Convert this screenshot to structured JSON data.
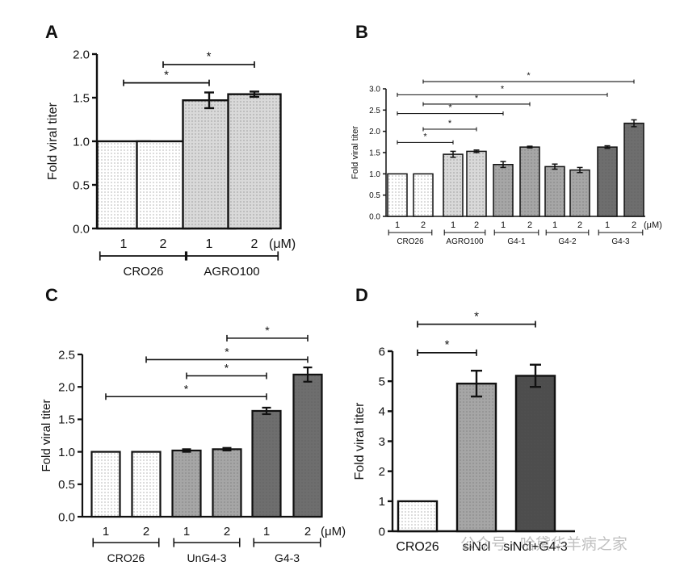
{
  "colors": {
    "white": "#ffffff",
    "light": "#d9d9d9",
    "medium": "#a6a6a6",
    "dark": "#6e6e6e",
    "darker": "#4d4d4d",
    "ink": "#111111",
    "watermark": "#8c8c8c"
  },
  "watermark": {
    "text": "公众号 · 哈黛华羊病之家"
  },
  "chart_data": [
    {
      "panel": "A",
      "type": "bar",
      "ylabel": "Fold viral titer",
      "ylim": [
        0,
        2.0
      ],
      "yticks": [
        0.0,
        0.5,
        1.0,
        1.5,
        2.0
      ],
      "ytick_labels": [
        "0.0",
        "0.5",
        "1.0",
        "1.5",
        "2.0"
      ],
      "unit": "(μM)",
      "categories": [
        "1",
        "2",
        "1",
        "2"
      ],
      "values": [
        1.0,
        1.0,
        1.47,
        1.54
      ],
      "errors": [
        0,
        0,
        0.09,
        0.03
      ],
      "fills": [
        "white",
        "white",
        "light",
        "light"
      ],
      "groups": [
        {
          "label": "CRO26",
          "start": 0,
          "end": 1
        },
        {
          "label": "AGRO100",
          "start": 2,
          "end": 3
        }
      ],
      "significance": [
        {
          "from": 0,
          "to": 2,
          "y": 1.67,
          "label": "*"
        },
        {
          "from": 1,
          "to": 3,
          "y": 1.88,
          "label": "*"
        }
      ]
    },
    {
      "panel": "B",
      "type": "bar",
      "ylabel": "Fold viral titer",
      "ylim": [
        0,
        3.0
      ],
      "yticks": [
        0.0,
        0.5,
        1.0,
        1.5,
        2.0,
        2.5,
        3.0
      ],
      "ytick_labels": [
        "0.0",
        "0.5",
        "1.0",
        "1.5",
        "2.0",
        "2.5",
        "3.0"
      ],
      "unit": "(μM)",
      "categories": [
        "1",
        "2",
        "1",
        "2",
        "1",
        "2",
        "1",
        "2",
        "1",
        "2"
      ],
      "values": [
        1.0,
        1.0,
        1.46,
        1.53,
        1.22,
        1.63,
        1.17,
        1.09,
        1.63,
        2.19
      ],
      "errors": [
        0,
        0,
        0.07,
        0.03,
        0.07,
        0.02,
        0.06,
        0.06,
        0.03,
        0.08
      ],
      "fills": [
        "white",
        "white",
        "light",
        "light",
        "medium",
        "medium",
        "medium",
        "medium",
        "dark",
        "dark"
      ],
      "groups": [
        {
          "label": "CRO26",
          "start": 0,
          "end": 1
        },
        {
          "label": "AGRO100",
          "start": 2,
          "end": 3
        },
        {
          "label": "G4-1",
          "start": 4,
          "end": 5
        },
        {
          "label": "G4-2",
          "start": 6,
          "end": 7
        },
        {
          "label": "G4-3",
          "start": 8,
          "end": 9
        }
      ],
      "significance": [
        {
          "from": 0,
          "to": 2,
          "y": 1.74,
          "label": "*"
        },
        {
          "from": 1,
          "to": 3,
          "y": 2.05,
          "label": "*"
        },
        {
          "from": 0,
          "to": 4,
          "y": 2.42,
          "label": "*"
        },
        {
          "from": 1,
          "to": 5,
          "y": 2.64,
          "label": "*"
        },
        {
          "from": 0,
          "to": 8,
          "y": 2.86,
          "label": "*"
        },
        {
          "from": 1,
          "to": 9,
          "y": 3.17,
          "label": "*"
        }
      ]
    },
    {
      "panel": "C",
      "type": "bar",
      "ylabel": "Fold viral titer",
      "ylim": [
        0,
        2.5
      ],
      "yticks": [
        0.0,
        0.5,
        1.0,
        1.5,
        2.0,
        2.5
      ],
      "ytick_labels": [
        "0.0",
        "0.5",
        "1.0",
        "1.5",
        "2.0",
        "2.5"
      ],
      "unit": "(μM)",
      "categories": [
        "1",
        "2",
        "1",
        "2",
        "1",
        "2"
      ],
      "values": [
        1.0,
        1.0,
        1.02,
        1.04,
        1.63,
        2.19
      ],
      "errors": [
        0,
        0,
        0.02,
        0.02,
        0.05,
        0.11
      ],
      "fills": [
        "white",
        "white",
        "medium",
        "medium",
        "dark",
        "dark"
      ],
      "groups": [
        {
          "label": "CRO26",
          "start": 0,
          "end": 1
        },
        {
          "label": "UnG4-3",
          "start": 2,
          "end": 3
        },
        {
          "label": "G4-3",
          "start": 4,
          "end": 5
        }
      ],
      "significance": [
        {
          "from": 0,
          "to": 4,
          "y": 1.85,
          "label": "*"
        },
        {
          "from": 2,
          "to": 4,
          "y": 2.17,
          "label": "*"
        },
        {
          "from": 1,
          "to": 5,
          "y": 2.42,
          "label": "*"
        },
        {
          "from": 3,
          "to": 5,
          "y": 2.75,
          "label": "*"
        }
      ]
    },
    {
      "panel": "D",
      "type": "bar",
      "ylabel": "Fold viral titer",
      "ylim": [
        0,
        6
      ],
      "yticks": [
        0,
        1,
        2,
        3,
        4,
        5,
        6
      ],
      "ytick_labels": [
        "0",
        "1",
        "2",
        "3",
        "4",
        "5",
        "6"
      ],
      "categories": [
        "CRO26",
        "siNcl",
        "siNcl+G4-3"
      ],
      "values": [
        1.0,
        4.92,
        5.18
      ],
      "errors": [
        0,
        0.43,
        0.37
      ],
      "fills": [
        "white",
        "medium",
        "darker"
      ],
      "significance": [
        {
          "from": 0,
          "to": 1,
          "y": 5.95,
          "label": "*"
        },
        {
          "from": 0,
          "to": 2,
          "y": 6.9,
          "label": "*"
        }
      ]
    }
  ]
}
